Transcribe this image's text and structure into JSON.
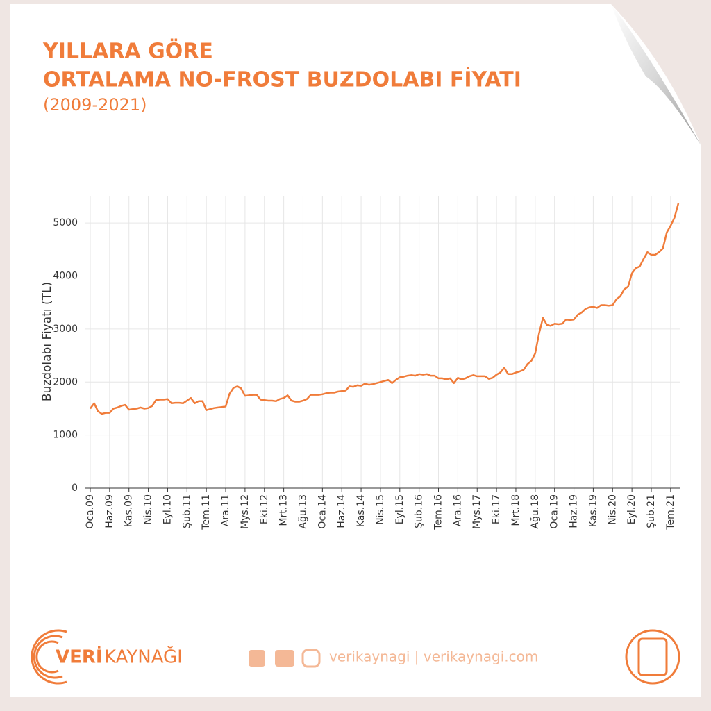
{
  "chart_data": {
    "type": "line",
    "title": "YILLARA GÖRE",
    "subtitle": "ORTALAMA NO-FROST BUZDOLABI FİYATI",
    "period": "(2009-2021)",
    "y_label": "Buzdolabı Fiyatı (TL)",
    "color": "#f07c3a",
    "grid": true,
    "ylim": [
      0,
      5500
    ],
    "yticks": [
      0,
      1000,
      2000,
      3000,
      4000,
      5000
    ],
    "categories": [
      "Oca.09",
      null,
      null,
      null,
      null,
      "Haz.09",
      null,
      null,
      null,
      null,
      "Kas.09",
      null,
      null,
      null,
      null,
      "Nis.10",
      null,
      null,
      null,
      null,
      "Eyl.10",
      null,
      null,
      null,
      null,
      "Şub.11",
      null,
      null,
      null,
      null,
      "Tem.11",
      null,
      null,
      null,
      null,
      "Ara.11",
      null,
      null,
      null,
      null,
      "Mys.12",
      null,
      null,
      null,
      null,
      "Eki.12",
      null,
      null,
      null,
      null,
      "Mrt.13",
      null,
      null,
      null,
      null,
      "Ağu.13",
      null,
      null,
      null,
      null,
      "Oca.14",
      null,
      null,
      null,
      null,
      "Haz.14",
      null,
      null,
      null,
      null,
      "Kas.14",
      null,
      null,
      null,
      null,
      "Nis.15",
      null,
      null,
      null,
      null,
      "Eyl.15",
      null,
      null,
      null,
      null,
      "Şub.16",
      null,
      null,
      null,
      null,
      "Tem.16",
      null,
      null,
      null,
      null,
      "Ara.16",
      null,
      null,
      null,
      null,
      "Mys.17",
      null,
      null,
      null,
      null,
      "Eki.17",
      null,
      null,
      null,
      null,
      "Mrt.18",
      null,
      null,
      null,
      null,
      "Ağu.18",
      null,
      null,
      null,
      null,
      "Oca.19",
      null,
      null,
      null,
      null,
      "Haz.19",
      null,
      null,
      null,
      null,
      "Kas.19",
      null,
      null,
      null,
      null,
      "Nis.20",
      null,
      null,
      null,
      null,
      "Eyl.20",
      null,
      null,
      null,
      null,
      "Şub.21",
      null,
      null,
      null,
      null,
      "Tem.21",
      null,
      null
    ],
    "values": [
      1500,
      1600,
      1450,
      1400,
      1420,
      1420,
      1500,
      1520,
      1550,
      1570,
      1480,
      1490,
      1500,
      1520,
      1500,
      1510,
      1550,
      1660,
      1670,
      1670,
      1680,
      1600,
      1610,
      1610,
      1600,
      1650,
      1700,
      1600,
      1640,
      1640,
      1470,
      1490,
      1510,
      1520,
      1530,
      1540,
      1780,
      1890,
      1920,
      1880,
      1740,
      1750,
      1760,
      1760,
      1670,
      1660,
      1650,
      1650,
      1640,
      1680,
      1700,
      1750,
      1650,
      1630,
      1630,
      1650,
      1680,
      1760,
      1760,
      1760,
      1770,
      1790,
      1800,
      1800,
      1820,
      1830,
      1840,
      1920,
      1910,
      1940,
      1930,
      1970,
      1950,
      1960,
      1980,
      2000,
      2020,
      2040,
      1980,
      2040,
      2090,
      2100,
      2120,
      2130,
      2120,
      2150,
      2140,
      2150,
      2120,
      2120,
      2070,
      2070,
      2050,
      2070,
      1980,
      2080,
      2050,
      2070,
      2110,
      2130,
      2110,
      2110,
      2110,
      2060,
      2080,
      2140,
      2180,
      2270,
      2150,
      2150,
      2180,
      2200,
      2230,
      2340,
      2400,
      2540,
      2920,
      3210,
      3080,
      3060,
      3100,
      3090,
      3100,
      3180,
      3170,
      3180,
      3270,
      3310,
      3380,
      3410,
      3420,
      3400,
      3450,
      3450,
      3440,
      3450,
      3560,
      3620,
      3750,
      3800,
      4050,
      4150,
      4180,
      4320,
      4450,
      4400,
      4400,
      4450,
      4520,
      4820,
      4950,
      5100,
      5370
    ]
  },
  "footer": {
    "brand_bold": "VERİ",
    "brand_light": "KAYNAĞI",
    "social": "verikaynagi | verikaynagi.com"
  }
}
